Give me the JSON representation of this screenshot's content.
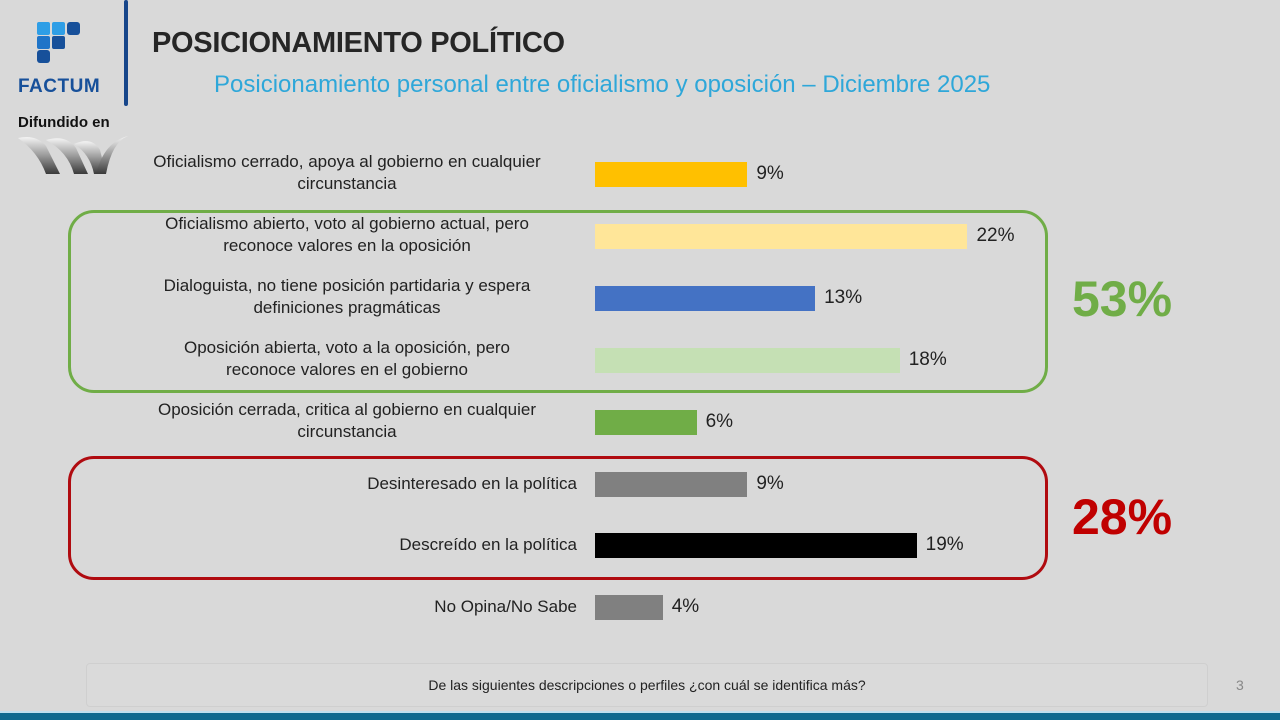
{
  "brand": {
    "name": "FACTUM",
    "disseminated_label": "Difundido en",
    "colors": {
      "primary": "#17509a",
      "light": "#2e9ee6"
    }
  },
  "header": {
    "title": "POSICIONAMIENTO POLÍTICO",
    "subtitle": "Posicionamiento personal entre oficialismo y oposición – Diciembre 2025"
  },
  "chart_data": {
    "type": "bar",
    "orientation": "horizontal",
    "title": "Posicionamiento personal entre oficialismo y oposición – Diciembre 2025",
    "xlabel": "",
    "ylabel": "",
    "xlim": [
      0,
      25
    ],
    "unit": "%",
    "categories": [
      "Oficialismo cerrado, apoya al gobierno en cualquier circunstancia",
      "Oficialismo abierto, voto al gobierno actual, pero reconoce valores en la oposición",
      "Dialoguista, no tiene posición partidaria y espera definiciones pragmáticas",
      "Oposición abierta, voto a la oposición, pero reconoce valores en el gobierno",
      "Oposición cerrada, critica al gobierno en cualquier circunstancia",
      "Desinteresado en la política",
      "Descreído en la política",
      "No Opina/No Sabe"
    ],
    "label_lines": [
      [
        "Oficialismo cerrado, apoya al gobierno en cualquier",
        "circunstancia"
      ],
      [
        "Oficialismo abierto, voto al gobierno actual, pero",
        "reconoce valores en la oposición"
      ],
      [
        "Dialoguista, no tiene posición partidaria y espera",
        "definiciones pragmáticas"
      ],
      [
        "Oposición abierta, voto a la oposición, pero",
        "reconoce valores en el gobierno"
      ],
      [
        "Oposición cerrada, critica al gobierno en cualquier",
        "circunstancia"
      ],
      [
        "Desinteresado en la política"
      ],
      [
        "Descreído en la política"
      ],
      [
        "No Opina/No Sabe"
      ]
    ],
    "values": [
      9,
      22,
      13,
      18,
      6,
      9,
      19,
      4
    ],
    "value_labels": [
      "9%",
      "22%",
      "13%",
      "18%",
      "6%",
      "9%",
      "19%",
      "4%"
    ],
    "colors": [
      "#ffc000",
      "#ffe699",
      "#4472c4",
      "#c5e0b4",
      "#70ad47",
      "#808080",
      "#000000",
      "#808080"
    ],
    "grid": false,
    "legend": "none",
    "groups": [
      {
        "name": "green",
        "members": [
          1,
          2,
          3
        ],
        "total_label": "53%",
        "color": "#70ad47"
      },
      {
        "name": "red",
        "members": [
          5,
          6
        ],
        "total_label": "28%",
        "color": "#c00000"
      }
    ]
  },
  "footer": {
    "question": "De las siguientes descripciones o perfiles ¿con cuál se identifica más?",
    "page_number": "3"
  }
}
